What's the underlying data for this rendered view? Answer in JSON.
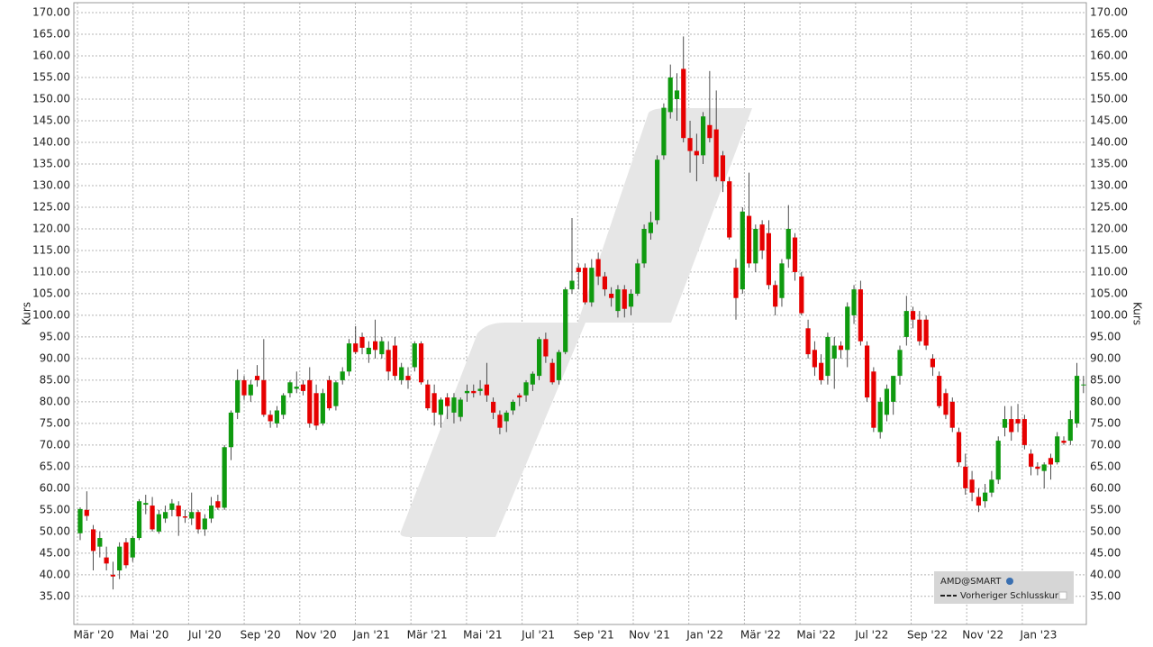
{
  "chart_data": {
    "type": "candlestick",
    "series_name": "AMD@SMART",
    "legend_previous_close": "Vorheriger Schlusskurs",
    "y_label": "Kurs",
    "y2_label": "Kurs",
    "up_color": "#0f9a0f",
    "down_color": "#e60000",
    "grid": true,
    "ylim": [
      28.5,
      172.3
    ],
    "yticks": [
      {
        "value": 35,
        "label": "35.00"
      },
      {
        "value": 40,
        "label": "40.00"
      },
      {
        "value": 45,
        "label": "45.00"
      },
      {
        "value": 50,
        "label": "50.00"
      },
      {
        "value": 55,
        "label": "55.00"
      },
      {
        "value": 60,
        "label": "60.00"
      },
      {
        "value": 65,
        "label": "65.00"
      },
      {
        "value": 70,
        "label": "70.00"
      },
      {
        "value": 75,
        "label": "75.00"
      },
      {
        "value": 80,
        "label": "80.00"
      },
      {
        "value": 85,
        "label": "85.00"
      },
      {
        "value": 90,
        "label": "90.00"
      },
      {
        "value": 95,
        "label": "95.00"
      },
      {
        "value": 100,
        "label": "100.00"
      },
      {
        "value": 105,
        "label": "105.00"
      },
      {
        "value": 110,
        "label": "110.00"
      },
      {
        "value": 115,
        "label": "115.00"
      },
      {
        "value": 120,
        "label": "120.00"
      },
      {
        "value": 125,
        "label": "125.00"
      },
      {
        "value": 130,
        "label": "130.00"
      },
      {
        "value": 135,
        "label": "135.00"
      },
      {
        "value": 140,
        "label": "140.00"
      },
      {
        "value": 145,
        "label": "145.00"
      },
      {
        "value": 150,
        "label": "150.00"
      },
      {
        "value": 155,
        "label": "155.00"
      },
      {
        "value": 160,
        "label": "160.00"
      },
      {
        "value": 165,
        "label": "165.00"
      },
      {
        "value": 170,
        "label": "170.00"
      }
    ],
    "x_axis_labels": [
      "Mär '20",
      "Mai '20",
      "Jul '20",
      "Sep '20",
      "Nov '20",
      "Jan '21",
      "Mär '21",
      "Mai '21",
      "Jul '21",
      "Sep '21",
      "Nov '21",
      "Jan '22",
      "Mär '22",
      "Mai '22",
      "Jul '22",
      "Sep '22",
      "Nov '22",
      "Jan '23"
    ],
    "ohlc": [
      [
        49.6,
        55.6,
        48,
        55.2
      ],
      [
        55,
        59.3,
        52.5,
        53.6
      ],
      [
        50.5,
        51.5,
        41,
        45.5
      ],
      [
        46.5,
        50,
        44,
        48.5
      ],
      [
        44,
        46.5,
        41,
        42.6
      ],
      [
        40,
        43,
        36.6,
        39.6
      ],
      [
        41,
        47.5,
        39,
        46.5
      ],
      [
        47.5,
        48.5,
        41.5,
        42.2
      ],
      [
        44,
        49,
        43,
        48.5
      ],
      [
        48.5,
        57.5,
        48,
        57
      ],
      [
        56.2,
        58.5,
        54,
        56.6
      ],
      [
        56,
        58,
        50,
        50.5
      ],
      [
        50,
        55,
        49.5,
        54
      ],
      [
        53,
        56,
        52,
        54.5
      ],
      [
        55,
        57.5,
        53.5,
        56.5
      ],
      [
        56,
        57,
        49,
        53.5
      ],
      [
        53.5,
        55,
        52,
        53.2
      ],
      [
        53,
        59,
        51.5,
        54.5
      ],
      [
        54.5,
        55,
        49.5,
        50.5
      ],
      [
        50.5,
        54,
        49,
        53
      ],
      [
        53,
        58,
        52,
        56
      ],
      [
        57,
        58.5,
        55,
        55.5
      ],
      [
        55.5,
        70,
        55,
        69.5
      ],
      [
        69.5,
        78,
        66.5,
        77.5
      ],
      [
        77.5,
        87.5,
        76,
        85
      ],
      [
        85,
        86,
        80.5,
        81.5
      ],
      [
        81.5,
        85,
        80,
        84
      ],
      [
        86,
        88.5,
        83.5,
        85
      ],
      [
        85,
        94.5,
        76.5,
        77
      ],
      [
        77,
        78,
        74,
        75.5
      ],
      [
        75,
        79,
        74,
        78
      ],
      [
        77,
        82,
        76,
        81.5
      ],
      [
        82,
        85,
        81,
        84.5
      ],
      [
        83,
        87,
        82,
        83.5
      ],
      [
        84,
        85,
        81.5,
        82.5
      ],
      [
        85,
        88,
        74,
        75
      ],
      [
        82,
        84,
        73.5,
        74.5
      ],
      [
        75,
        83,
        74.5,
        82
      ],
      [
        85,
        86,
        78,
        78.5
      ],
      [
        79,
        85,
        78,
        84.5
      ],
      [
        85,
        88,
        84,
        87
      ],
      [
        87,
        94.5,
        86,
        93.5
      ],
      [
        93.5,
        97.5,
        91,
        91.5
      ],
      [
        95,
        96,
        91,
        92.5
      ],
      [
        91,
        94,
        89,
        92.5
      ],
      [
        94,
        99,
        90,
        92
      ],
      [
        91,
        95,
        90,
        94
      ],
      [
        92,
        94,
        85,
        87
      ],
      [
        93,
        95,
        85,
        86
      ],
      [
        85,
        89,
        84,
        88
      ],
      [
        86,
        88,
        83,
        85
      ],
      [
        88,
        94,
        87,
        93.5
      ],
      [
        93.5,
        94,
        84,
        84.5
      ],
      [
        84,
        85,
        78,
        78.5
      ],
      [
        82,
        84,
        74.5,
        77.5
      ],
      [
        77,
        81,
        74,
        80.5
      ],
      [
        81,
        82,
        76,
        79
      ],
      [
        77.5,
        82,
        75,
        81
      ],
      [
        76.5,
        81,
        75.5,
        80.5
      ],
      [
        82,
        84,
        80,
        82.5
      ],
      [
        82.5,
        84,
        81,
        82
      ],
      [
        82.5,
        85,
        81.5,
        83
      ],
      [
        84,
        89,
        80,
        81.5
      ],
      [
        80,
        81,
        76,
        77.5
      ],
      [
        77,
        78,
        72.5,
        74
      ],
      [
        75.5,
        78,
        73,
        77.5
      ],
      [
        78,
        80.5,
        77,
        80
      ],
      [
        81.5,
        82,
        79,
        81
      ],
      [
        81.5,
        85,
        80,
        84.5
      ],
      [
        84,
        87,
        82.5,
        86.5
      ],
      [
        86,
        95,
        85,
        94.5
      ],
      [
        94.5,
        96,
        89,
        90.5
      ],
      [
        89,
        90,
        84,
        84.5
      ],
      [
        85,
        92,
        84,
        91.5
      ],
      [
        91.5,
        106.5,
        91,
        106
      ],
      [
        106,
        122.5,
        105,
        108
      ],
      [
        111,
        112,
        106,
        110
      ],
      [
        111,
        112,
        102.5,
        103
      ],
      [
        103,
        113,
        102,
        111
      ],
      [
        113,
        114.5,
        107,
        109
      ],
      [
        109,
        110,
        104.5,
        106
      ],
      [
        105,
        106.5,
        102,
        104
      ],
      [
        101,
        107,
        99.5,
        106
      ],
      [
        106,
        107,
        99.5,
        101.5
      ],
      [
        102,
        106,
        100,
        105
      ],
      [
        105,
        113,
        104.5,
        112
      ],
      [
        112,
        121,
        111,
        120
      ],
      [
        119,
        124,
        117.5,
        121.5
      ],
      [
        122,
        137,
        121,
        136
      ],
      [
        137,
        149,
        136,
        148
      ],
      [
        147,
        158,
        145.5,
        155
      ],
      [
        150,
        156,
        145,
        152
      ],
      [
        157,
        164.5,
        140,
        141
      ],
      [
        141,
        145,
        133,
        138
      ],
      [
        138,
        142,
        131,
        137
      ],
      [
        137,
        147,
        135,
        146
      ],
      [
        144,
        156.5,
        140,
        141
      ],
      [
        143,
        152,
        131,
        132
      ],
      [
        137,
        138,
        128.5,
        131
      ],
      [
        131,
        132,
        117.5,
        118
      ],
      [
        111,
        113,
        99,
        104
      ],
      [
        106,
        125,
        105,
        124
      ],
      [
        123,
        133,
        111,
        112
      ],
      [
        112,
        121,
        110,
        120
      ],
      [
        121,
        122,
        113,
        115
      ],
      [
        119,
        122,
        106,
        107
      ],
      [
        107,
        108,
        100,
        102
      ],
      [
        104,
        113,
        102,
        112
      ],
      [
        113,
        125.5,
        111,
        120
      ],
      [
        118,
        119,
        108,
        110
      ],
      [
        109,
        110,
        100,
        100.5
      ],
      [
        97,
        99,
        90,
        91
      ],
      [
        92,
        94,
        86,
        88
      ],
      [
        89,
        91,
        84,
        85
      ],
      [
        86,
        96,
        84,
        95
      ],
      [
        90,
        95,
        83,
        93
      ],
      [
        93,
        94,
        90,
        92
      ],
      [
        92,
        103,
        88,
        102
      ],
      [
        100,
        107,
        98,
        106
      ],
      [
        106,
        108,
        93,
        94
      ],
      [
        93,
        94,
        80,
        81
      ],
      [
        87,
        88,
        73,
        74
      ],
      [
        73,
        81,
        71.5,
        80
      ],
      [
        77,
        84,
        75.5,
        83
      ],
      [
        80,
        86,
        77,
        86
      ],
      [
        86,
        93,
        84,
        92
      ],
      [
        95,
        104.5,
        93,
        101
      ],
      [
        101,
        102,
        97,
        99
      ],
      [
        99,
        101,
        93,
        94
      ],
      [
        99,
        100,
        92,
        93
      ],
      [
        90,
        91,
        86,
        88
      ],
      [
        86,
        87,
        78.5,
        79
      ],
      [
        82,
        83,
        76,
        77
      ],
      [
        80,
        81,
        73,
        74
      ],
      [
        73,
        74,
        65,
        66
      ],
      [
        65,
        68,
        58.5,
        60
      ],
      [
        62,
        64,
        57,
        59
      ],
      [
        58,
        60,
        54.5,
        56
      ],
      [
        57,
        61,
        55.5,
        59
      ],
      [
        59,
        64,
        58,
        62
      ],
      [
        62,
        72,
        61,
        71
      ],
      [
        74,
        79,
        72,
        76
      ],
      [
        76,
        79,
        71,
        73
      ],
      [
        76,
        79.5,
        73,
        75
      ],
      [
        76,
        77,
        69,
        70
      ],
      [
        68,
        69,
        63,
        65
      ],
      [
        65,
        66,
        63,
        64.5
      ],
      [
        64,
        66,
        60,
        65.5
      ],
      [
        67,
        68,
        62,
        65.5
      ],
      [
        66,
        73,
        65.5,
        72
      ],
      [
        71,
        72,
        70,
        70.5
      ],
      [
        71,
        78,
        70,
        76
      ],
      [
        75,
        89,
        74,
        86
      ],
      [
        84,
        86,
        82,
        84
      ]
    ]
  }
}
